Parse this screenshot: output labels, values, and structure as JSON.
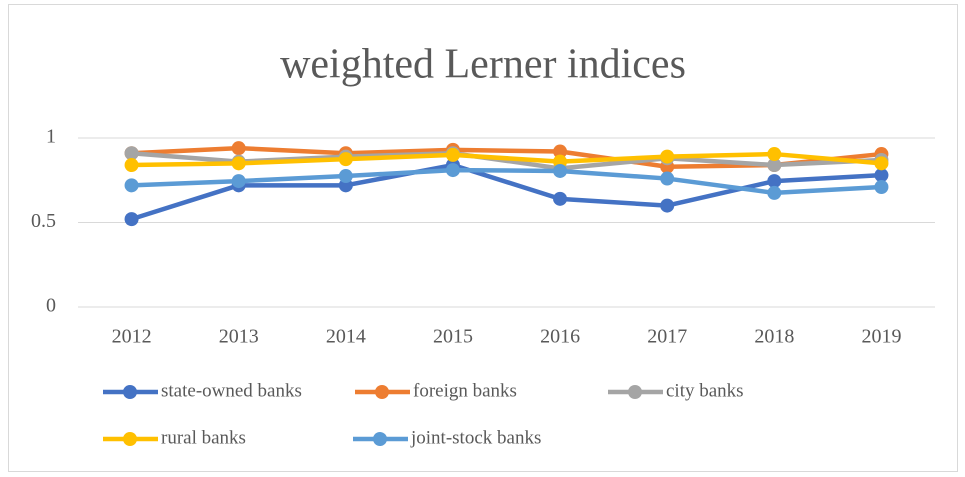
{
  "chart_data": {
    "type": "line",
    "title": "weighted Lerner indices",
    "categories": [
      "2012",
      "2013",
      "2014",
      "2015",
      "2016",
      "2017",
      "2018",
      "2019"
    ],
    "series": [
      {
        "name": "state-owned banks",
        "color": "#4472c4",
        "values": [
          0.52,
          0.72,
          0.72,
          0.84,
          0.64,
          0.6,
          0.745,
          0.78
        ]
      },
      {
        "name": "foreign banks",
        "color": "#ed7d31",
        "values": [
          0.91,
          0.94,
          0.91,
          0.93,
          0.92,
          0.83,
          0.84,
          0.905
        ]
      },
      {
        "name": "city banks",
        "color": "#a5a5a5",
        "values": [
          0.91,
          0.86,
          0.89,
          0.91,
          0.82,
          0.88,
          0.84,
          0.87
        ]
      },
      {
        "name": "rural banks",
        "color": "#ffc000",
        "values": [
          0.84,
          0.85,
          0.875,
          0.9,
          0.86,
          0.89,
          0.905,
          0.85
        ]
      },
      {
        "name": "joint-stock banks",
        "color": "#5b9bd5",
        "values": [
          0.72,
          0.745,
          0.775,
          0.81,
          0.805,
          0.76,
          0.675,
          0.71
        ]
      }
    ],
    "ylim": [
      0,
      1
    ],
    "yticks": [
      0,
      0.5,
      1
    ],
    "grid": true,
    "legend": "bottom"
  }
}
